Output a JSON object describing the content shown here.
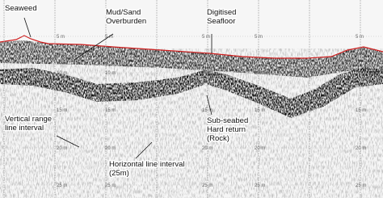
{
  "annotations": [
    {
      "lines": [
        "Seaweed"
      ]
    },
    {
      "lines": [
        "Mud/Sand",
        "Overburden"
      ]
    },
    {
      "lines": [
        "Digitised",
        "Seafloor"
      ]
    },
    {
      "lines": [
        "Vertical range",
        "line interval"
      ]
    },
    {
      "lines": [
        "Sub-seabed",
        "Hard return",
        "(Rock)"
      ]
    },
    {
      "lines": [
        "Horizontal line interval",
        "(25m)"
      ]
    }
  ],
  "depth_labels": [
    "5 m",
    "10 m",
    "15 m",
    "20 m",
    "25 m"
  ]
}
